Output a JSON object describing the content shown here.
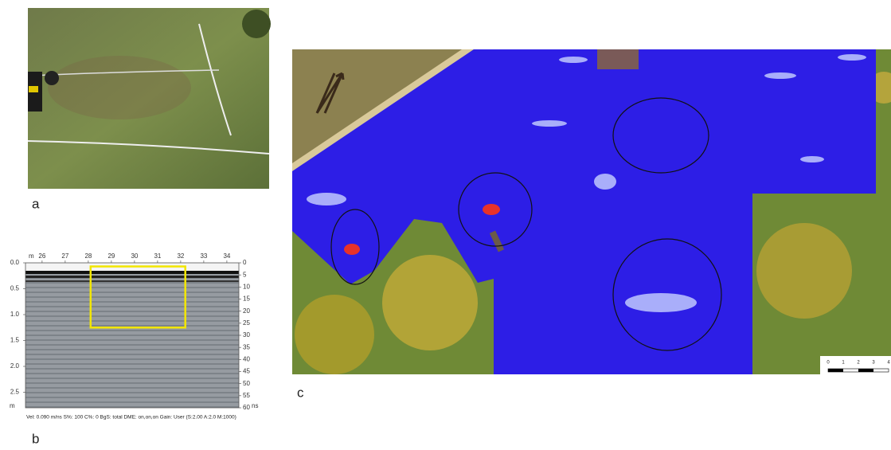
{
  "panels": {
    "a": {
      "label": "a"
    },
    "b": {
      "label": "b",
      "radargram": {
        "x_unit": "m",
        "y_unit": "m",
        "y2_unit": "ns",
        "xlim": [
          25.28,
          34.52
        ],
        "xticks": [
          26,
          27,
          28,
          29,
          30,
          31,
          32,
          33,
          34
        ],
        "ylim": [
          0,
          2.8
        ],
        "yticks": [
          {
            "value": 0,
            "label": "0.0"
          },
          0.5,
          {
            "value": 1,
            "label": "1.0"
          },
          1.5,
          {
            "value": 2,
            "label": "2.0"
          },
          2.5
        ],
        "y2lim": [
          0,
          60
        ],
        "y2ticks": [
          0,
          5,
          10,
          15,
          20,
          25,
          30,
          35,
          40,
          45,
          50,
          55,
          60
        ],
        "highlight": {
          "x": [
            28.1,
            32.2
          ],
          "y": [
            0.07,
            1.25
          ],
          "color": "#f2e600"
        },
        "footer": "Vel: 0.090 m/ns  S%: 100  C%: 0  BgS: total  DME: on,on,on   Gain: User (S:2.00 A:2.0 M:1000)"
      }
    },
    "c": {
      "label": "c",
      "scale_bar_labels": [
        0,
        1,
        2,
        3,
        4
      ]
    }
  }
}
